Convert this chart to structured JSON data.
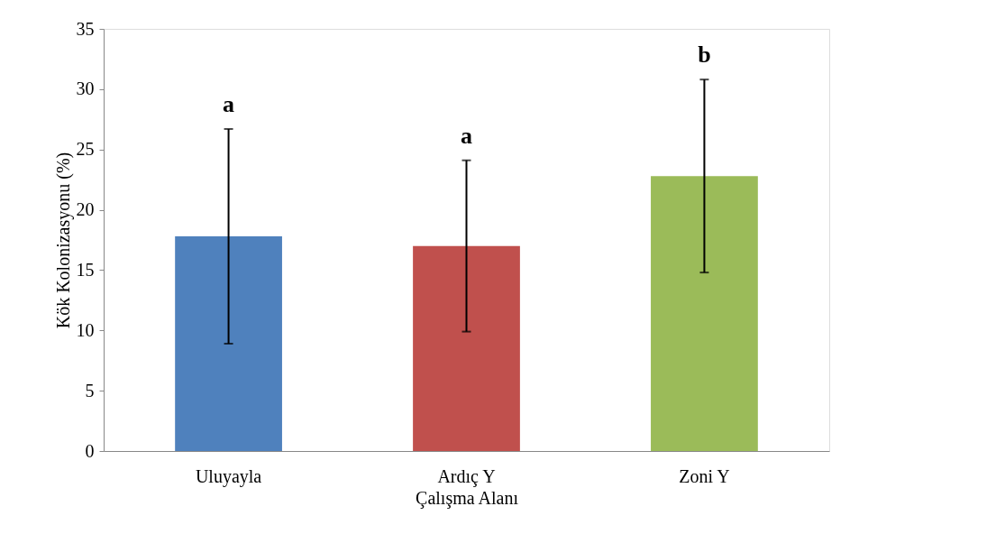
{
  "chart_data": {
    "type": "bar",
    "xlabel": "Çalışma Alanı",
    "ylabel": "Kök Kolonizasyonu (%)",
    "categories": [
      "Uluyayla",
      "Ardıç Y",
      "Zoni Y"
    ],
    "values": [
      17.8,
      17.0,
      22.8
    ],
    "colors": [
      "#4f81bd",
      "#c0504d",
      "#9bbb59"
    ],
    "errors": [
      8.9,
      7.1,
      8.0
    ],
    "ylim": [
      0,
      35
    ],
    "yticks": [
      0,
      5,
      10,
      15,
      20,
      25,
      30,
      35
    ],
    "grid": false,
    "annotations": [
      "a",
      "a",
      "b"
    ]
  }
}
